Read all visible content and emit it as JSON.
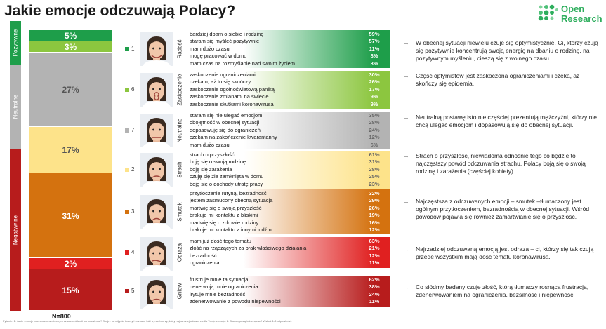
{
  "title": "Jakie emocje odczuwają Polacy?",
  "logo": {
    "line1": "Open",
    "line2": "Research",
    "color": "#2eae5d"
  },
  "side_labels": [
    {
      "label": "Pozytywne",
      "color": "#1e9e4a"
    },
    {
      "label": "Neutralne",
      "color": "#b3b3b3"
    },
    {
      "label": "Negatyw ne",
      "color": "#b71c1c"
    }
  ],
  "n_label": "N=800",
  "footnote": "Pytanie: 1. Jakie emocje odczuwasz w obecnym czasie epidemii koronawirusa? Spójrz na zdjęcia twarzy i zaznacz taki wyraz twarzy, który najbardziej odzwierciedla Twoje emocje. 2. Dlaczego się tak czujesz? Wskaż 1-3 odpowiedzi.",
  "arrow": "→",
  "chart_data": {
    "type": "bar",
    "stacked_distribution": {
      "categories": [
        "Radość",
        "Zaskoczenie",
        "Neutralne",
        "Strach",
        "Smutek",
        "Odraza",
        "Gniew"
      ],
      "values_pct": [
        5,
        3,
        27,
        17,
        31,
        2,
        15
      ],
      "labels": [
        "5%",
        "3%",
        "27%",
        "17%",
        "31%",
        "2%",
        "15%"
      ],
      "colors": [
        "#1e9e4a",
        "#8cc63f",
        "#b3b3b3",
        "#fde38a",
        "#d4720f",
        "#e02020",
        "#b71c1c"
      ]
    },
    "emotions": [
      {
        "rank": "1",
        "name": "Radość",
        "color": "#1e9e4a",
        "reasons": [
          {
            "text": "bardziej dbam o siebie i rodzinę",
            "value": 59,
            "label": "59%"
          },
          {
            "text": "staram się myśleć pozytywnie",
            "value": 57,
            "label": "57%"
          },
          {
            "text": "mam dużo czasu",
            "value": 11,
            "label": "11%"
          },
          {
            "text": "mogę pracować w domu",
            "value": 8,
            "label": "8%"
          },
          {
            "text": "mam czas na rozmyślanie nad swoim życiem",
            "value": 3,
            "label": "3%"
          }
        ]
      },
      {
        "rank": "6",
        "name": "Zaskoczenie",
        "color": "#8cc63f",
        "reasons": [
          {
            "text": "zaskoczenie ograniczeniami",
            "value": 30,
            "label": "30%"
          },
          {
            "text": "czekam, aż to się skończy",
            "value": 26,
            "label": "26%"
          },
          {
            "text": "zaskoczenie ogólnoświatową paniką",
            "value": 17,
            "label": "17%"
          },
          {
            "text": "zaskoczenie zmianami na świecie",
            "value": 9,
            "label": "9%"
          },
          {
            "text": "zaskoczenie skutkami koronawirusa",
            "value": 9,
            "label": "9%"
          }
        ]
      },
      {
        "rank": "7",
        "name": "Neutralne",
        "color": "#b3b3b3",
        "reasons": [
          {
            "text": "staram się nie ulegać emocjom",
            "value": 35,
            "label": "35%"
          },
          {
            "text": "obojętność w obecnej sytuacji",
            "value": 28,
            "label": "28%"
          },
          {
            "text": "dopasowuję się do ograniczeń",
            "value": 24,
            "label": "24%"
          },
          {
            "text": "czekam na zakończenie kwarantanny",
            "value": 12,
            "label": "12%"
          },
          {
            "text": "mam dużo czasu",
            "value": 6,
            "label": "6%"
          }
        ]
      },
      {
        "rank": "2",
        "name": "Strach",
        "color": "#fde38a",
        "reasons": [
          {
            "text": "strach o przyszłość",
            "value": 61,
            "label": "61%"
          },
          {
            "text": "boję się o swoją rodzinę",
            "value": 31,
            "label": "31%"
          },
          {
            "text": "boję się zarażenia",
            "value": 28,
            "label": "28%"
          },
          {
            "text": "czuję się źle zamknięta w domu",
            "value": 25,
            "label": "25%"
          },
          {
            "text": "boję się o dochody utratę pracy",
            "value": 23,
            "label": "23%"
          }
        ]
      },
      {
        "rank": "3",
        "name": "Smutek",
        "color": "#d4720f",
        "reasons": [
          {
            "text": "przytłoczenie rutyną, bezradność",
            "value": 32,
            "label": "32%"
          },
          {
            "text": "jestem zasmucony obecną sytuacją",
            "value": 29,
            "label": "29%"
          },
          {
            "text": "martwię się o swoją przyszłość",
            "value": 26,
            "label": "26%"
          },
          {
            "text": "brakuje mi kontaktu z bliskimi",
            "value": 19,
            "label": "19%"
          },
          {
            "text": "martwię się o zdrowie rodziny",
            "value": 16,
            "label": "16%"
          },
          {
            "text": "brakuje mi kontaktu z innymi ludźmi",
            "value": 12,
            "label": "12%"
          }
        ]
      },
      {
        "rank": "4",
        "name": "Odraza",
        "color": "#e02020",
        "reasons": [
          {
            "text": "mam już dość tego tematu",
            "value": 63,
            "label": "63%"
          },
          {
            "text": "złość na rządzących za brak właściwego działania",
            "value": 21,
            "label": "21%"
          },
          {
            "text": "bezradność",
            "value": 12,
            "label": "12%"
          },
          {
            "text": "ograniczenia",
            "value": 11,
            "label": "11%"
          }
        ]
      },
      {
        "rank": "5",
        "name": "Gniew",
        "color": "#b71c1c",
        "reasons": [
          {
            "text": "frustruje mnie ta sytuacja",
            "value": 62,
            "label": "62%"
          },
          {
            "text": "denerwują mnie ograniczenia",
            "value": 38,
            "label": "38%"
          },
          {
            "text": "irytuje mnie bezradność",
            "value": 24,
            "label": "24%"
          },
          {
            "text": "zdenerwowanie z powodu niepewności",
            "value": 11,
            "label": "11%"
          }
        ]
      }
    ]
  },
  "comments": [
    [
      "W obecnej sytuacji niewielu czuje się optymistycznie. Ci, którzy czują się pozytywnie koncentrują swoją energię na dbaniu o rodzinę, na pozytywnym myśleniu, cieszą się z wolnego czasu.",
      "Część optymistów jest zaskoczona ograniczeniami i czeka, aż skończy się epidemia."
    ],
    [
      "Neutralną postawę istotnie częściej prezentują mężczyźni, którzy nie chcą ulegać emocjom i dopasowują się do obecnej sytuacji."
    ],
    [
      "Strach o przyszłość, niewiadoma odnośnie tego co będzie to najczęstszy powód odczuwania strachu. Polacy boją się o swoją rodzinę i zarażenia (częściej kobiety)."
    ],
    [
      "Najczęstsza z odczuwanych emocji – smutek –tłumaczony jest ogólnym przytłoczeniem, bezradnością w obecnej sytuacji. Wśród powodów pojawia się również zamartwianie się o przyszłość."
    ],
    [
      "Najrzadziej odczuwaną emocją jest odraza – ci, którzy się tak czują przede wszystkim mają dość tematu koronawirusa."
    ],
    [
      "Co siódmy badany czuje złość, którą tłumaczy rosnącą frustracją, zdenerwowaniem na ograniczenia, bezsilność i niepewność."
    ]
  ]
}
